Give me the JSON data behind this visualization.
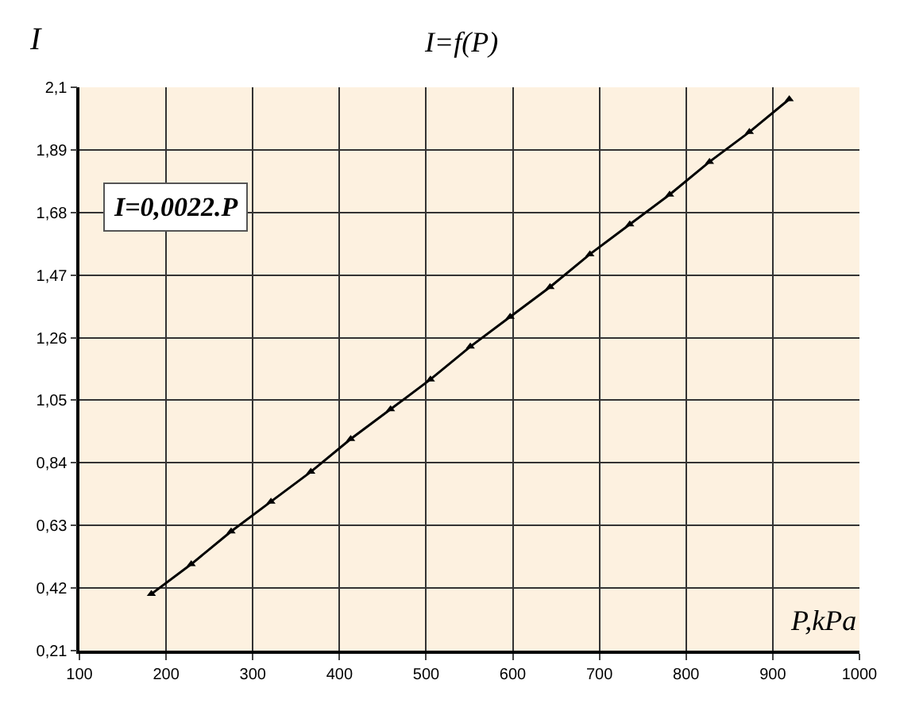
{
  "chart_data": {
    "type": "line",
    "title": "I=f(P)",
    "xlabel": "P,kPa",
    "ylabel": "I",
    "annotations": [
      "I=0,0022.P"
    ],
    "x": [
      183,
      229,
      275,
      321,
      367,
      413,
      459,
      505,
      551,
      597,
      643,
      689,
      735,
      781,
      827,
      873,
      919
    ],
    "series": [
      {
        "color": "#000000",
        "values": [
          0.4,
          0.5,
          0.61,
          0.71,
          0.81,
          0.92,
          1.02,
          1.12,
          1.23,
          1.33,
          1.43,
          1.54,
          1.64,
          1.74,
          1.85,
          1.95,
          2.06
        ]
      }
    ],
    "xlim": [
      100,
      1000
    ],
    "xticks": [
      100,
      200,
      300,
      400,
      500,
      600,
      700,
      800,
      900,
      1000
    ],
    "ylim": [
      0.21,
      2.1
    ],
    "yticks": [
      {
        "value": 0.21,
        "label": "0,21"
      },
      {
        "value": 0.42,
        "label": "0,42"
      },
      {
        "value": 0.63,
        "label": "0,63"
      },
      {
        "value": 0.84,
        "label": "0,84"
      },
      {
        "value": 1.05,
        "label": "1,05"
      },
      {
        "value": 1.26,
        "label": "1,26"
      },
      {
        "value": 1.47,
        "label": "1,47"
      },
      {
        "value": 1.68,
        "label": "1,68"
      },
      {
        "value": 1.89,
        "label": "1,89"
      },
      {
        "value": 2.1,
        "label": "2,1"
      }
    ],
    "grid": true,
    "marker": "triangle",
    "line_style": "solid"
  }
}
